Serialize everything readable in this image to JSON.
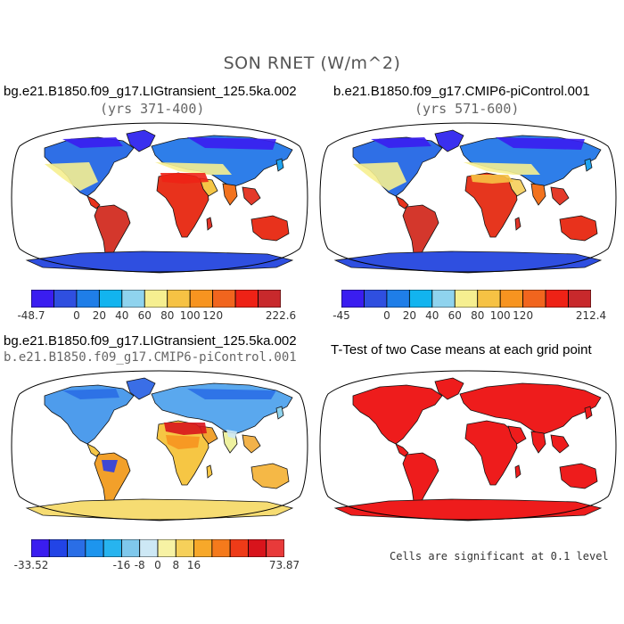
{
  "title": "SON RNET (W/m^2)",
  "panels": [
    {
      "title": "bg.e21.B1850.f09_g17.LIGtransient_125.5ka.002",
      "subtitle": "(yrs 371-400)",
      "colorbar": {
        "colors": [
          "#3a1df0",
          "#2f4fe0",
          "#1f7ee8",
          "#12b4ef",
          "#8fd3ee",
          "#f6ef90",
          "#f6c244",
          "#f79420",
          "#f1651e",
          "#ee2216",
          "#c8292c"
        ],
        "tick_labels": [
          "-48.7",
          "0",
          "20",
          "40",
          "60",
          "80",
          "100",
          "120",
          "222.6"
        ]
      }
    },
    {
      "title": "b.e21.B1850.f09_g17.CMIP6-piControl.001",
      "subtitle": "(yrs 571-600)",
      "colorbar": {
        "colors": [
          "#3a1df0",
          "#2f4fe0",
          "#1f7ee8",
          "#12b4ef",
          "#8fd3ee",
          "#f6ef90",
          "#f6c244",
          "#f79420",
          "#f1651e",
          "#ee2216",
          "#c8292c"
        ],
        "tick_labels": [
          "-45",
          "0",
          "20",
          "40",
          "60",
          "80",
          "100",
          "120",
          "212.4"
        ]
      }
    },
    {
      "title": "bg.e21.B1850.f09_g17.LIGtransient_125.5ka.002",
      "subtitle": "b.e21.B1850.f09_g17.CMIP6-piControl.001",
      "colorbar": {
        "colors": [
          "#3a1df0",
          "#2244e6",
          "#2a6ee6",
          "#1d95ee",
          "#27b4ef",
          "#7fc8ec",
          "#cde8f5",
          "#f7f2a4",
          "#f6d05a",
          "#f7a82a",
          "#f57a1c",
          "#ee3b18",
          "#d8141c",
          "#e83a3a"
        ],
        "tick_labels": [
          "-33.52",
          "-16",
          "-8",
          "0",
          "8",
          "16",
          "73.87"
        ]
      }
    },
    {
      "title": "T-Test of two Case means at each grid point",
      "note": "Cells are significant at 0.1 level"
    }
  ],
  "icons": {
    "map": "world-map-robinson-icon"
  }
}
